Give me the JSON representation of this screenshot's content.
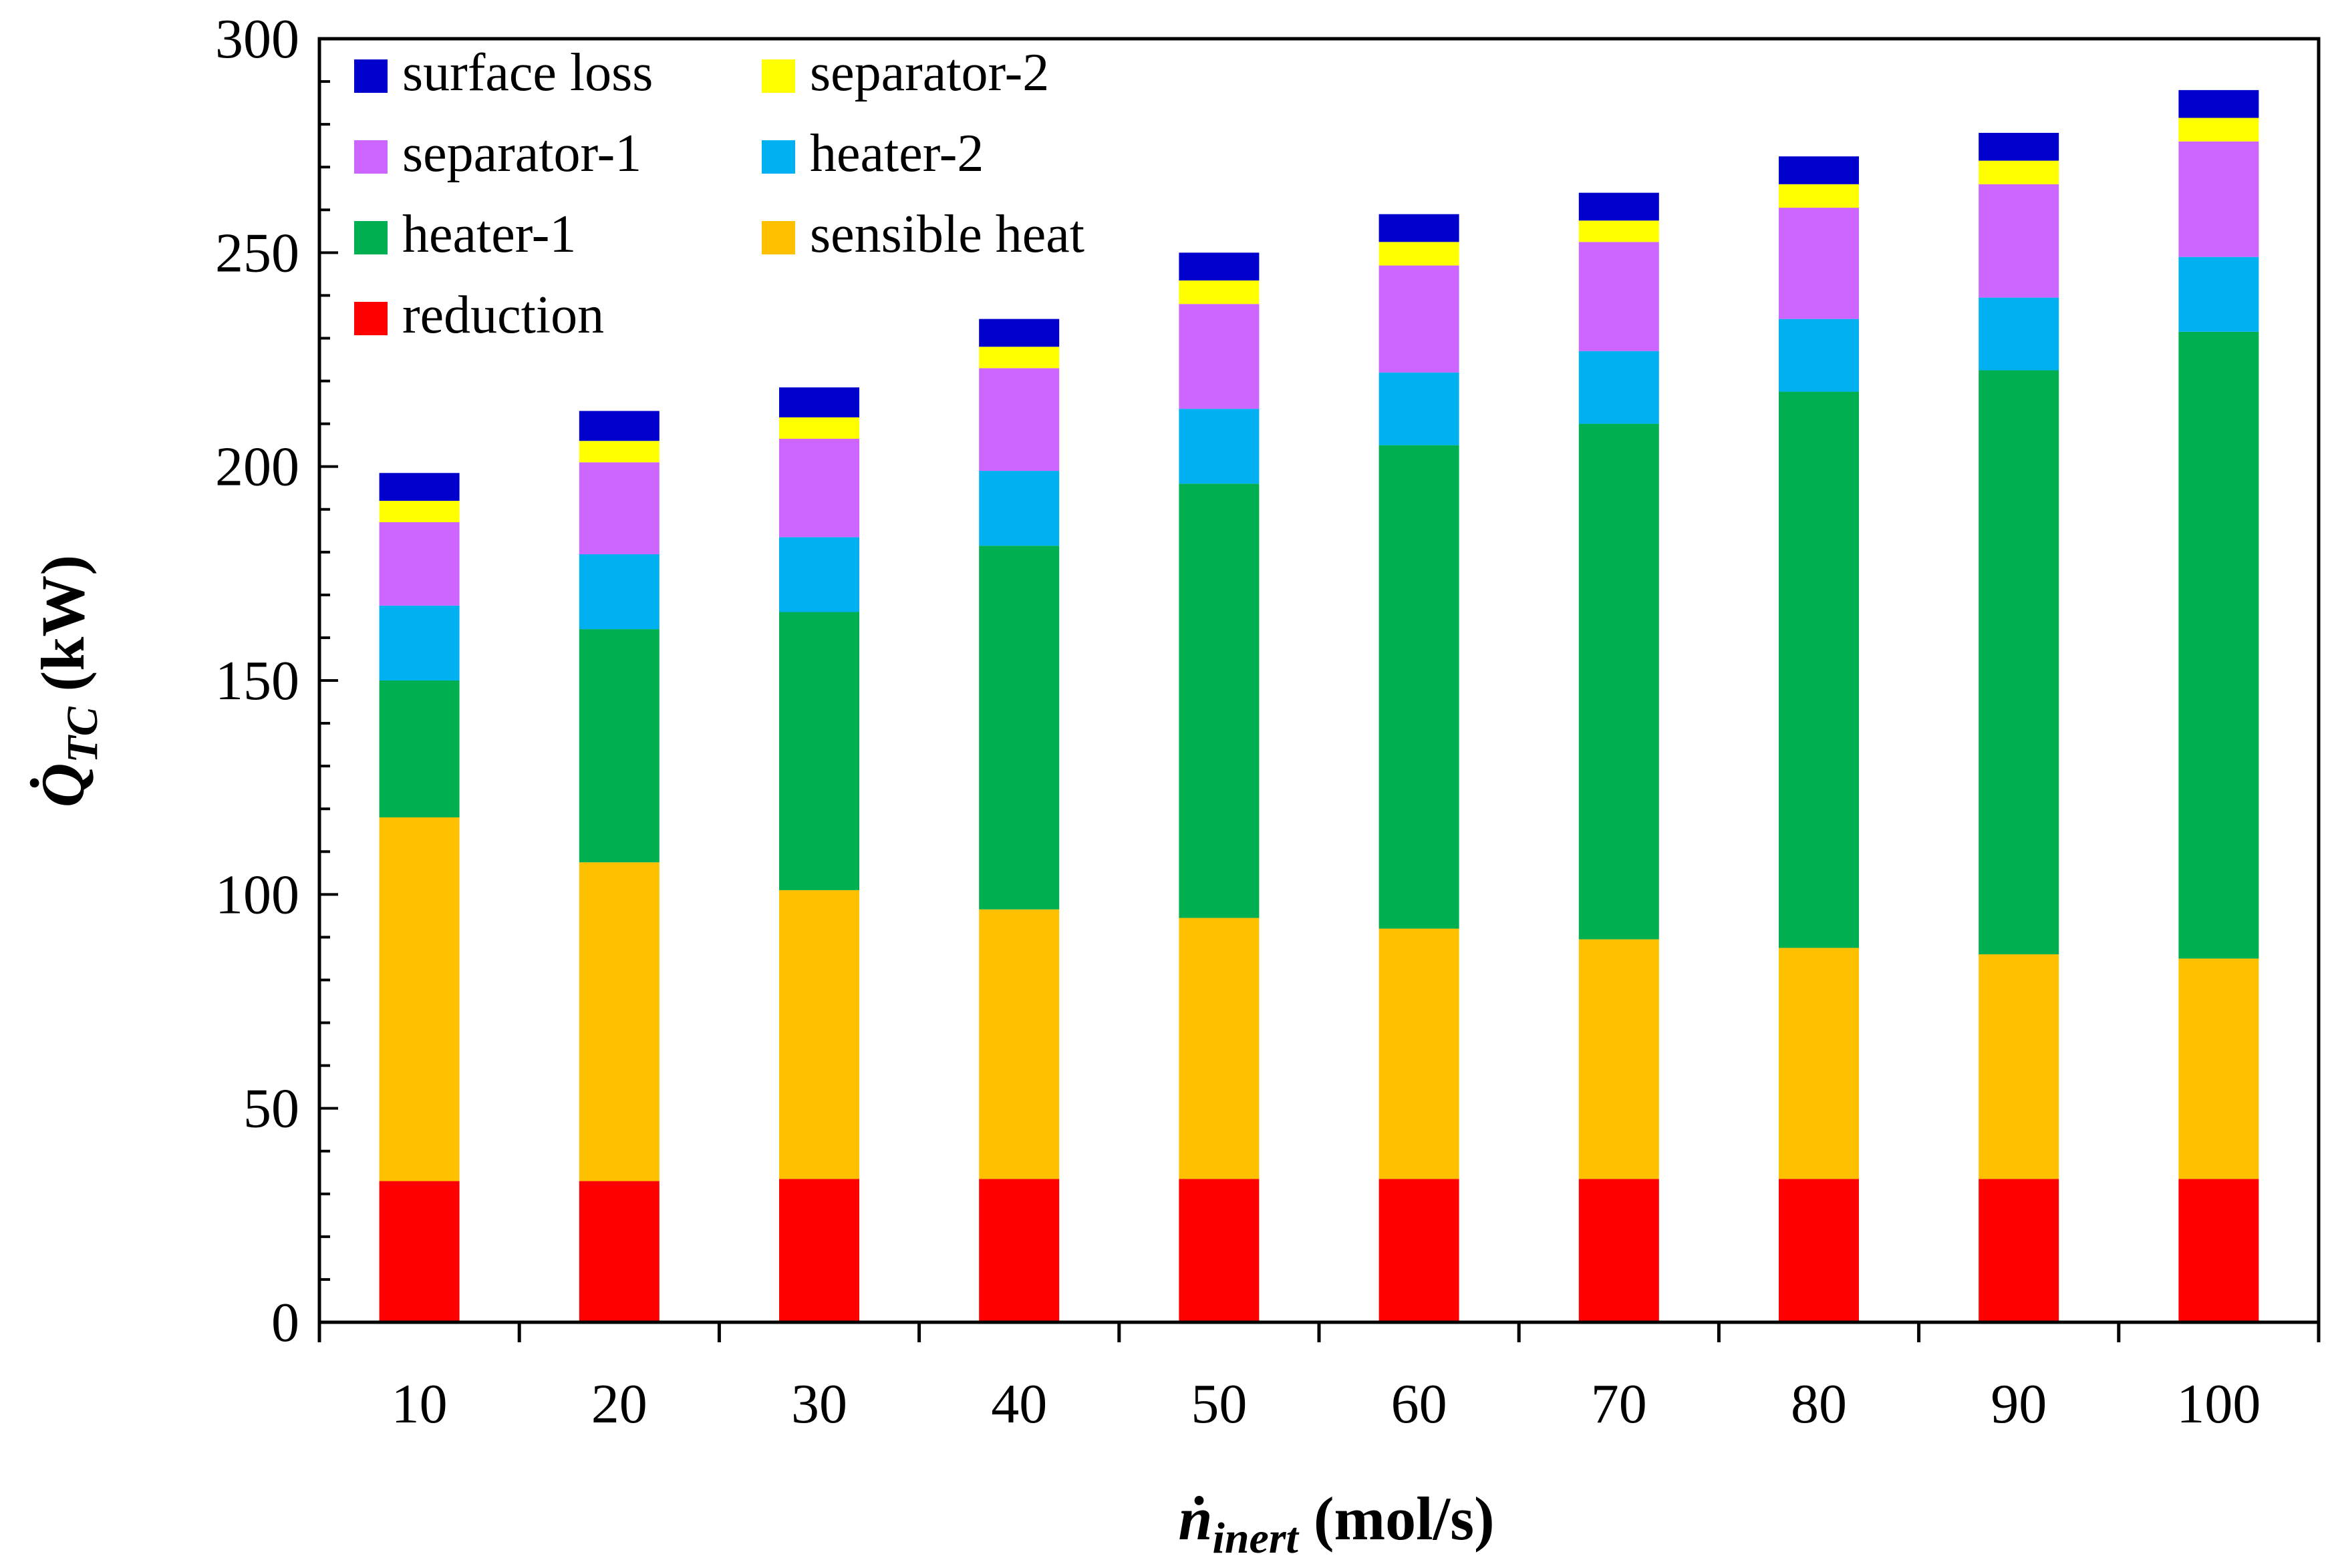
{
  "chart_data": {
    "type": "bar",
    "stacked": true,
    "title": "",
    "categories": [
      "10",
      "20",
      "30",
      "40",
      "50",
      "60",
      "70",
      "80",
      "90",
      "100"
    ],
    "ylim": [
      0,
      300
    ],
    "yticks": [
      0,
      50,
      100,
      150,
      200,
      250,
      300
    ],
    "xlabel": {
      "symbol": "ṅ",
      "subscript": "inert",
      "unit": " (mol/s)"
    },
    "ylabel": {
      "symbol": "Q̇",
      "subscript": "TC",
      "unit": " (kW)"
    },
    "legend_position": "top-left",
    "series": [
      {
        "name": "reduction",
        "color": "#ff0000",
        "values": [
          33,
          33,
          33.5,
          33.5,
          33.5,
          33.5,
          33.5,
          33.5,
          33.5,
          33.5
        ]
      },
      {
        "name": "sensible heat",
        "color": "#ffc000",
        "values": [
          85,
          74.5,
          67.5,
          63,
          61,
          58.5,
          56,
          54,
          52.5,
          51.5
        ]
      },
      {
        "name": "heater-1",
        "color": "#00b050",
        "values": [
          32,
          54.5,
          65,
          85,
          101.5,
          113,
          120.5,
          130,
          136.5,
          146.5
        ]
      },
      {
        "name": "heater-2",
        "color": "#00b0f0",
        "values": [
          17.5,
          17.5,
          17.5,
          17.5,
          17.5,
          17,
          17,
          17,
          17,
          17.5
        ]
      },
      {
        "name": "separator-1",
        "color": "#cc66ff",
        "values": [
          19.5,
          21.5,
          23,
          24,
          24.5,
          25,
          25.5,
          26,
          26.5,
          27
        ]
      },
      {
        "name": "separator-2",
        "color": "#ffff00",
        "values": [
          5,
          5,
          5,
          5,
          5.5,
          5.5,
          5,
          5.5,
          5.5,
          5.5
        ]
      },
      {
        "name": "surface loss",
        "color": "#0000cc",
        "values": [
          6.5,
          7,
          7,
          6.5,
          6.5,
          6.5,
          6.5,
          6.5,
          6.5,
          6.5
        ]
      }
    ],
    "legend_order": [
      "surface loss",
      "separator-2",
      "separator-1",
      "heater-2",
      "heater-1",
      "sensible heat",
      "reduction"
    ]
  }
}
